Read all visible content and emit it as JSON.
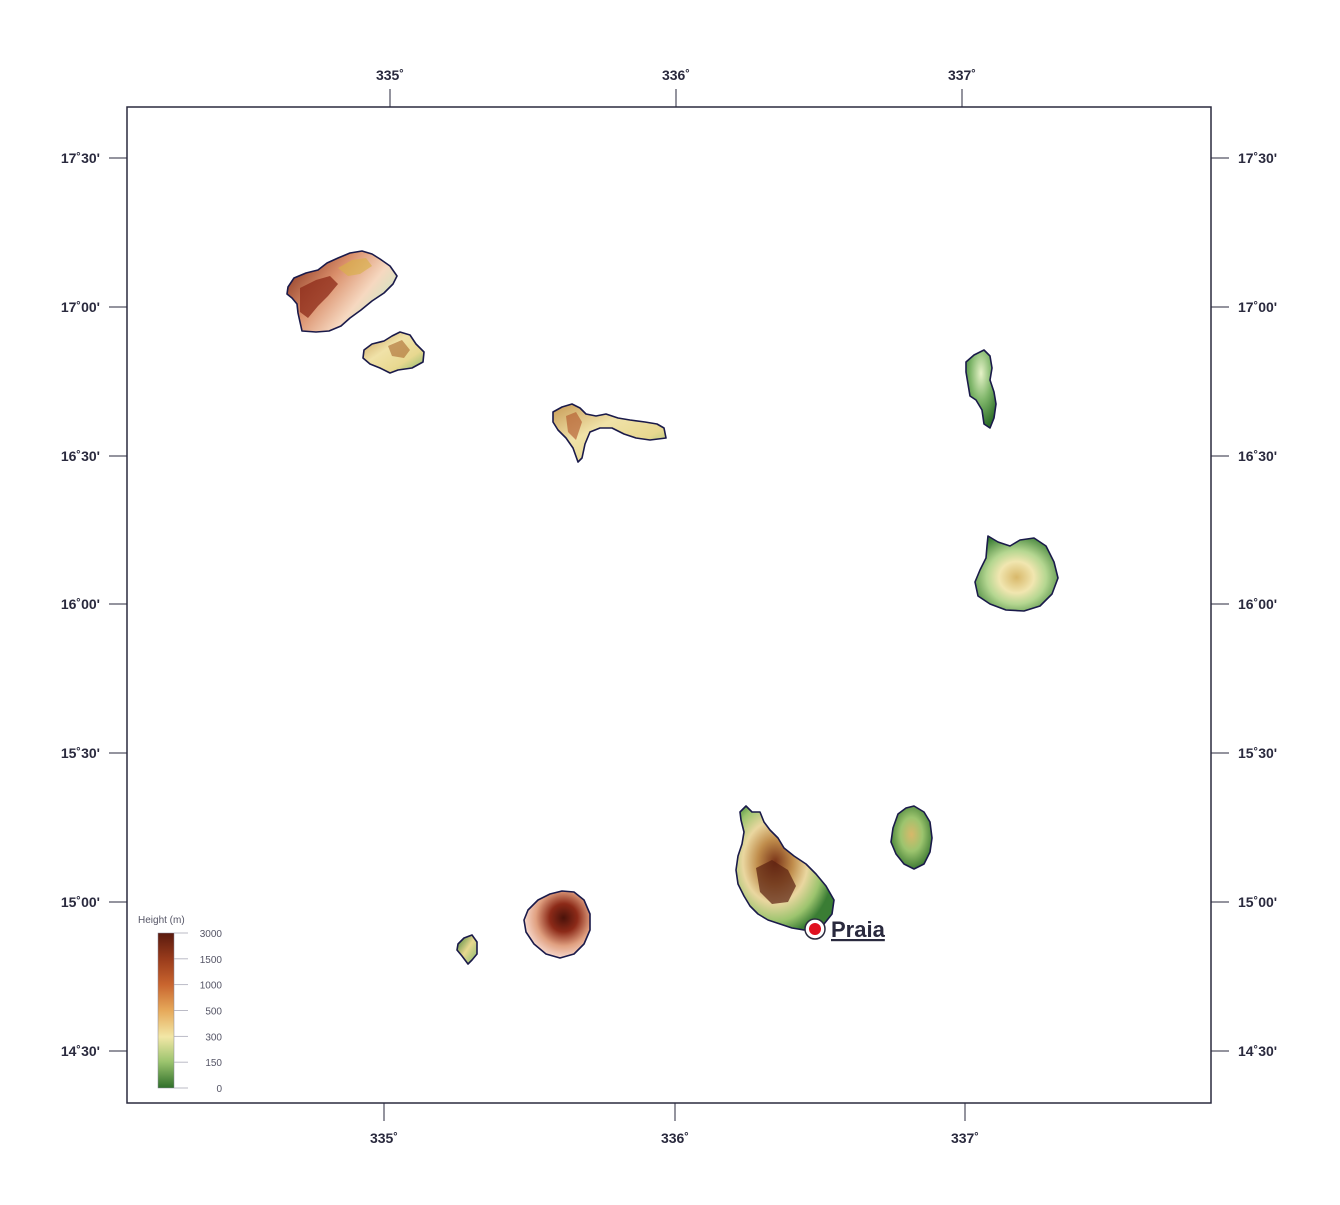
{
  "map": {
    "frame_color": "#2a2a3e",
    "top_ticks": [
      "335˚",
      "336˚",
      "337˚"
    ],
    "bottom_ticks": [
      "335˚",
      "336˚",
      "337˚"
    ],
    "left_ticks": [
      "17˚30'",
      "17˚00'",
      "16˚30'",
      "16˚00'",
      "15˚30'",
      "15˚00'",
      "14˚30'"
    ],
    "right_ticks": [
      "17˚30'",
      "17˚00'",
      "16˚30'",
      "16˚00'",
      "15˚30'",
      "15˚00'",
      "14˚30'"
    ]
  },
  "legend": {
    "title": "Height  (m)",
    "ticks": [
      "3000",
      "1500",
      "1000",
      "500",
      "300",
      "150",
      "0"
    ],
    "colors": [
      "#5a1a0e",
      "#9a3c1c",
      "#c8642e",
      "#e6a95a",
      "#f2e7a6",
      "#9cc46e",
      "#2f6f2a"
    ]
  },
  "city": {
    "name": "Praia",
    "marker_color": "#e01020"
  }
}
